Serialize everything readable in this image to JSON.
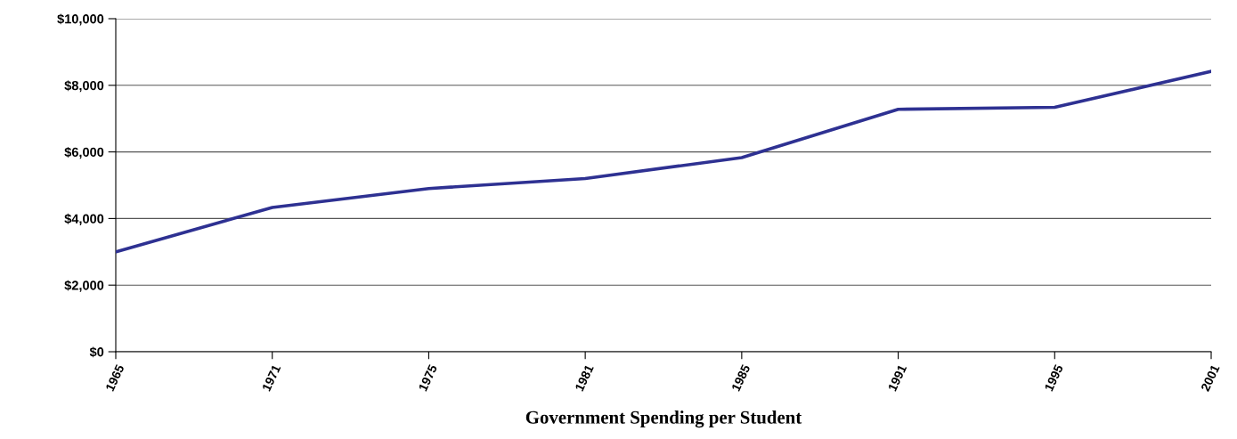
{
  "chart_data": {
    "type": "line",
    "xlabel": "Government Spending per Student",
    "categories": [
      "1965",
      "1971",
      "1975",
      "1981",
      "1985",
      "1991",
      "1995",
      "2001"
    ],
    "series": [
      {
        "color": "#2e3192",
        "values": [
          3000,
          4330,
          4900,
          5200,
          5830,
          7280,
          7340,
          8420
        ]
      }
    ],
    "ylim": [
      0,
      10000
    ],
    "yticks": [
      {
        "value": 0,
        "label": "$0"
      },
      {
        "value": 2000,
        "label": "$2,000"
      },
      {
        "value": 4000,
        "label": "$4,000"
      },
      {
        "value": 6000,
        "label": "$6,000"
      },
      {
        "value": 8000,
        "label": "$8,000"
      },
      {
        "value": 10000,
        "label": "$10,000"
      }
    ],
    "grid": "y",
    "legend": false,
    "marker": "none",
    "line_style": "solid"
  }
}
